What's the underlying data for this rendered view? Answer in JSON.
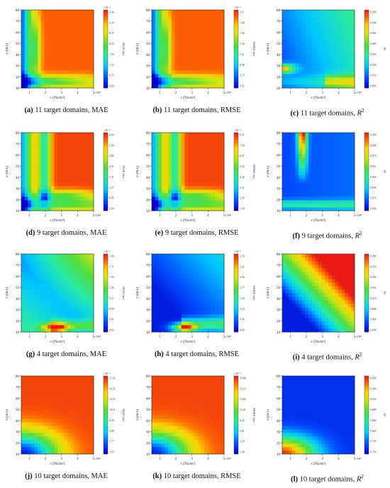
{
  "figure": {
    "rows": [
      {
        "domains_label": "11 target domains",
        "panels": [
          {
            "id": "a",
            "letter": "(a)",
            "metric_text": "MAE",
            "ylabel": "v (m/s)",
            "xlabel": "c (Ns/m²)",
            "cbar_label": "MAE (m)",
            "cbar_exp": "×10⁻³",
            "xexp": "×10⁴",
            "xticks": [
              "1",
              "2",
              "3",
              "4",
              "5"
            ],
            "yticks": [
              "10",
              "20",
              "30",
              "40",
              "50",
              "60",
              "70",
              "80"
            ],
            "cbar_ticks": [
              "0.34",
              "0.30",
              "0.27",
              "0.23",
              "1.93",
              "1.72",
              "0.75",
              "0.69"
            ]
          },
          {
            "id": "b",
            "letter": "(b)",
            "metric_text": "RMSE",
            "ylabel": "v (m/s)",
            "xlabel": "c (Ns/m²)",
            "cbar_label": "RMSE (m)",
            "cbar_exp": "×10⁻³",
            "xexp": "×10⁴",
            "xticks": [
              "1",
              "2",
              "3",
              "4",
              "5"
            ],
            "yticks": [
              "10",
              "20",
              "30",
              "40",
              "50",
              "60",
              "70",
              "80"
            ],
            "cbar_ticks": [
              "2.11",
              "1.88",
              "1.66",
              "1.43",
              "1.21",
              "0.98",
              "0.75",
              "0.52"
            ]
          },
          {
            "id": "c",
            "letter": "(c)",
            "metric_text": "R",
            "ylabel": "v (m/s)",
            "xlabel": "c (Ns/m²)",
            "cbar_label": "R²",
            "cbar_exp": "",
            "xexp": "×10⁴",
            "xticks": [
              "1",
              "2",
              "3",
              "4",
              "5"
            ],
            "yticks": [
              "10",
              "20",
              "30",
              "40",
              "50",
              "60",
              "70",
              "80"
            ],
            "cbar_ticks": [
              "0.999",
              "0.994",
              "0.982",
              "0.969",
              "0.955",
              "0.939",
              "0.916",
              "0.883"
            ]
          }
        ]
      },
      {
        "domains_label": "9 target domains",
        "panels": [
          {
            "id": "d",
            "letter": "(d)",
            "metric_text": "MAE",
            "ylabel": "v (m/s)",
            "xlabel": "c (Ns/m²)",
            "cbar_label": "MAE (m)",
            "cbar_exp": "×10⁻³",
            "xexp": "×10⁴",
            "xticks": [
              "1",
              "2",
              "3",
              "4",
              "5"
            ],
            "yticks": [
              "10",
              "20",
              "30",
              "40",
              "50",
              "60",
              "70",
              "80"
            ],
            "cbar_ticks": [
              "0.60",
              "5.69",
              "4.85",
              "4.51",
              "3.31",
              "1.27",
              "0.95",
              "0.69"
            ]
          },
          {
            "id": "e",
            "letter": "(e)",
            "metric_text": "RMSE",
            "ylabel": "v (m/s)",
            "xlabel": "c (Ns/m²)",
            "cbar_label": "RMSE (m)",
            "cbar_exp": "×10⁻³",
            "xexp": "×10⁴",
            "xticks": [
              "1",
              "2",
              "3",
              "4",
              "5"
            ],
            "yticks": [
              "10",
              "20",
              "30",
              "40",
              "50",
              "60",
              "70",
              "80"
            ],
            "cbar_ticks": [
              "8.51",
              "7.49",
              "6.47",
              "5.45",
              "4.43",
              "3.41",
              "2.39",
              "1.38"
            ]
          },
          {
            "id": "f",
            "letter": "(f)",
            "metric_text": "R",
            "ylabel": "v (m/s)",
            "xlabel": "c (Ns/m²)",
            "cbar_label": "R²",
            "cbar_exp": "",
            "xexp": "×10⁴",
            "xticks": [
              "1",
              "2",
              "3",
              "4",
              "5"
            ],
            "yticks": [
              "10",
              "20",
              "30",
              "40",
              "50",
              "60",
              "70",
              "80"
            ],
            "cbar_ticks": [
              "0.999",
              "0.998",
              "0.973",
              "0.951",
              "0.928",
              "0.903",
              "0.876",
              "0.849"
            ]
          }
        ]
      },
      {
        "domains_label": "4 target domains",
        "panels": [
          {
            "id": "g",
            "letter": "(g)",
            "metric_text": "MAE",
            "ylabel": "v (m/s)",
            "xlabel": "c (Ns/m²)",
            "cbar_label": "MAE (m)",
            "cbar_exp": "×10⁻³",
            "xexp": "×10⁴",
            "xticks": [
              "1",
              "2",
              "3",
              "4",
              "5"
            ],
            "yticks": [
              "10",
              "20",
              "30",
              "40",
              "50",
              "60",
              "70",
              "80"
            ],
            "cbar_ticks": [
              "1.89",
              "1.71",
              "1.53",
              "1.35",
              "1.17",
              "0.99",
              "0.81",
              "0.63"
            ]
          },
          {
            "id": "h",
            "letter": "(h)",
            "metric_text": "RMSE",
            "ylabel": "v (m/s)",
            "xlabel": "c (Ns/m²)",
            "cbar_label": "RMSE (m)",
            "cbar_exp": "×10⁻³",
            "xexp": "×10⁴",
            "xticks": [
              "1",
              "2",
              "3",
              "4",
              "5"
            ],
            "yticks": [
              "10",
              "20",
              "30",
              "40",
              "50",
              "60",
              "70",
              "80"
            ],
            "cbar_ticks": [
              "2.58",
              "2.31",
              "2.04",
              "1.77",
              "1.50",
              "1.23",
              "0.96",
              "0.69"
            ]
          },
          {
            "id": "i",
            "letter": "(i)",
            "metric_text": "R",
            "ylabel": "v (m/s)",
            "xlabel": "c (Ns/m²)",
            "cbar_label": "R²",
            "cbar_exp": "",
            "xexp": "×10⁴",
            "xticks": [
              "1",
              "2",
              "3",
              "4",
              "5"
            ],
            "yticks": [
              "10",
              "20",
              "30",
              "40",
              "50",
              "60",
              "70",
              "80"
            ],
            "cbar_ticks": [
              "0.998",
              "0.976",
              "0.954",
              "0.932",
              "0.910",
              "0.888",
              "0.866",
              "0.844"
            ]
          }
        ]
      },
      {
        "domains_label": "10 target domains",
        "panels": [
          {
            "id": "j",
            "letter": "(j)",
            "metric_text": "MAE",
            "ylabel": "v (m/s)",
            "xlabel": "c (Ns/m²)",
            "cbar_label": "MAE (m)",
            "cbar_exp": "×10⁻³",
            "xexp": "×10⁴",
            "xticks": [
              "1",
              "2",
              "3",
              "4",
              "5"
            ],
            "yticks": [
              "10",
              "20",
              "30",
              "40",
              "50",
              "60",
              "70",
              "80"
            ],
            "cbar_ticks": [
              "17.45",
              "14.35",
              "12.23",
              "10.11",
              "8.00",
              "5.89",
              "3.77",
              "1.65"
            ]
          },
          {
            "id": "k",
            "letter": "(k)",
            "metric_text": "RMSE",
            "ylabel": "v (m/s)",
            "xlabel": "c (Ns/m²)",
            "cbar_label": "RMSE (m)",
            "cbar_exp": "×10⁻³",
            "xexp": "×10⁴",
            "xticks": [
              "1",
              "2",
              "3",
              "4",
              "5"
            ],
            "yticks": [
              "10",
              "20",
              "30",
              "40",
              "50",
              "60",
              "70",
              "80"
            ],
            "cbar_ticks": [
              "18.86",
              "16.25",
              "13.64",
              "11.03",
              "8.42",
              "5.81",
              "3.20",
              "1.40"
            ]
          },
          {
            "id": "l",
            "letter": "(l)",
            "metric_text": "R",
            "ylabel": "v (m/s)",
            "xlabel": "c (Ns/m²)",
            "cbar_label": "R²",
            "cbar_exp": "",
            "xexp": "×10⁴",
            "xticks": [
              "1",
              "2",
              "3",
              "4",
              "5"
            ],
            "yticks": [
              "10",
              "20",
              "30",
              "40",
              "50",
              "60",
              "70",
              "80"
            ],
            "cbar_ticks": [
              "0.999",
              "0.968",
              "0.933",
              "0.899",
              "0.864",
              "0.829",
              "0.795",
              "0.760"
            ]
          }
        ]
      }
    ]
  },
  "chart_data": [
    {
      "panel": "a",
      "type": "heatmap",
      "metric": "MAE",
      "x_range": [
        0.5,
        5
      ],
      "y_range": [
        10,
        80
      ],
      "pattern": "low-left-edge-band"
    },
    {
      "panel": "b",
      "type": "heatmap",
      "metric": "RMSE",
      "x_range": [
        0.5,
        5
      ],
      "y_range": [
        10,
        80
      ],
      "pattern": "low-left-edge-band"
    },
    {
      "panel": "c",
      "type": "heatmap",
      "metric": "R2",
      "x_range": [
        0.5,
        5
      ],
      "y_range": [
        10,
        80
      ],
      "pattern": "high-left-low-right"
    },
    {
      "panel": "d",
      "type": "heatmap",
      "metric": "MAE",
      "x_range": [
        0.5,
        5
      ],
      "y_range": [
        10,
        80
      ],
      "pattern": "left-band-with-spike"
    },
    {
      "panel": "e",
      "type": "heatmap",
      "metric": "RMSE",
      "x_range": [
        0.5,
        5
      ],
      "y_range": [
        10,
        80
      ],
      "pattern": "left-band-with-spike"
    },
    {
      "panel": "f",
      "type": "heatmap",
      "metric": "R2",
      "x_range": [
        0.5,
        5
      ],
      "y_range": [
        10,
        80
      ],
      "pattern": "high-with-red-spike"
    },
    {
      "panel": "g",
      "type": "heatmap",
      "metric": "MAE",
      "x_range": [
        0.5,
        5
      ],
      "y_range": [
        10,
        80
      ],
      "pattern": "diagonal-gradient-cyan"
    },
    {
      "panel": "h",
      "type": "heatmap",
      "metric": "RMSE",
      "x_range": [
        0.5,
        5
      ],
      "y_range": [
        10,
        80
      ],
      "pattern": "diagonal-gradient-blue"
    },
    {
      "panel": "i",
      "type": "heatmap",
      "metric": "R2",
      "x_range": [
        0.5,
        5
      ],
      "y_range": [
        10,
        80
      ],
      "pattern": "diagonal-blue-to-red"
    },
    {
      "panel": "j",
      "type": "heatmap",
      "metric": "MAE",
      "x_range": [
        0.5,
        5
      ],
      "y_range": [
        10,
        80
      ],
      "pattern": "red-with-low-corner"
    },
    {
      "panel": "k",
      "type": "heatmap",
      "metric": "RMSE",
      "x_range": [
        0.5,
        5
      ],
      "y_range": [
        10,
        80
      ],
      "pattern": "red-with-low-corner"
    },
    {
      "panel": "l",
      "type": "heatmap",
      "metric": "R2",
      "x_range": [
        0.5,
        5
      ],
      "y_range": [
        10,
        80
      ],
      "pattern": "blue-with-red-corner"
    }
  ]
}
